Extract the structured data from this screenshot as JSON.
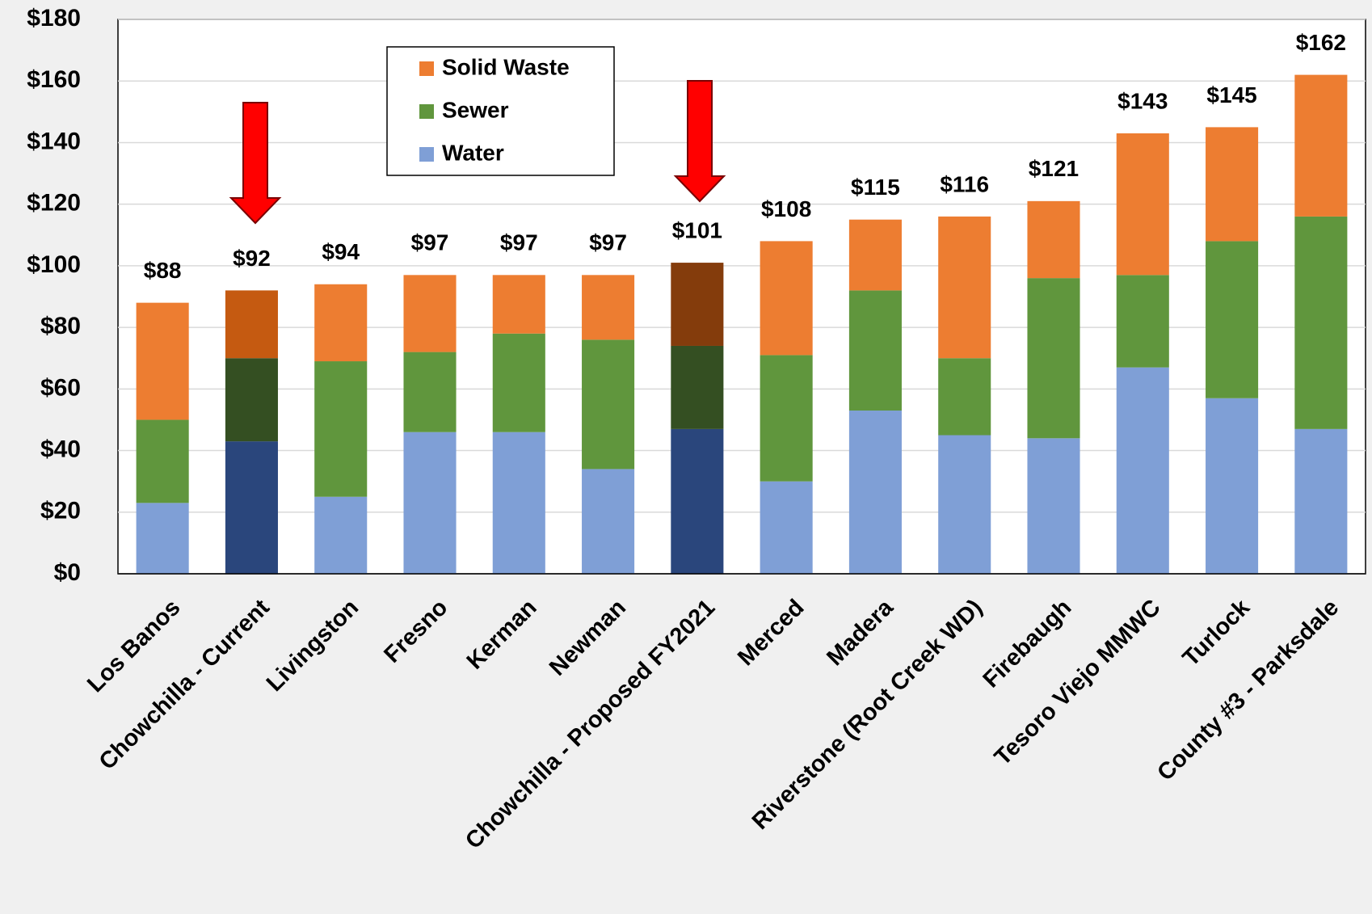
{
  "chart_data": {
    "type": "stacked_bar",
    "categories": [
      "Los Banos",
      "Chowchilla - Current",
      "Livingston",
      "Fresno",
      "Kerman",
      "Newman",
      "Chowchilla - Proposed FY2021",
      "Merced",
      "Madera",
      "Riverstone (Root Creek WD)",
      "Firebaugh",
      "Tesoro Viejo MMWC",
      "Turlock",
      "County #3 - Parksdale"
    ],
    "series": [
      {
        "name": "Water",
        "color": "#7f9fd6",
        "values": [
          23,
          43,
          25,
          46,
          46,
          34,
          47,
          30,
          53,
          45,
          44,
          67,
          57,
          47
        ],
        "colors": [
          "#7f9fd6",
          "#2a467c",
          "#7f9fd6",
          "#7f9fd6",
          "#7f9fd6",
          "#7f9fd6",
          "#2a467c",
          "#7f9fd6",
          "#7f9fd6",
          "#7f9fd6",
          "#7f9fd6",
          "#7f9fd6",
          "#7f9fd6",
          "#7f9fd6"
        ]
      },
      {
        "name": "Sewer",
        "color": "#60963d",
        "values": [
          27,
          27,
          44,
          26,
          32,
          42,
          27,
          41,
          39,
          25,
          52,
          30,
          51,
          69
        ],
        "colors": [
          "#60963d",
          "#344f22",
          "#60963d",
          "#60963d",
          "#60963d",
          "#60963d",
          "#344f22",
          "#60963d",
          "#60963d",
          "#60963d",
          "#60963d",
          "#60963d",
          "#60963d",
          "#60963d"
        ]
      },
      {
        "name": "Solid Waste",
        "color": "#ed7d31",
        "values": [
          38,
          22,
          25,
          25,
          19,
          21,
          27,
          37,
          23,
          46,
          25,
          46,
          37,
          46
        ],
        "colors": [
          "#ed7d31",
          "#c55a11",
          "#ed7d31",
          "#ed7d31",
          "#ed7d31",
          "#ed7d31",
          "#843c0c",
          "#ed7d31",
          "#ed7d31",
          "#ed7d31",
          "#ed7d31",
          "#ed7d31",
          "#ed7d31",
          "#ed7d31"
        ]
      }
    ],
    "total_labels": [
      "$88",
      "$92",
      "$94",
      "$97",
      "$97",
      "$97",
      "$101",
      "$108",
      "$115",
      "$116",
      "$121",
      "$143",
      "$145",
      "$162"
    ],
    "ylim": [
      0,
      180
    ],
    "yticks": [
      {
        "value": 0,
        "label": "$0"
      },
      {
        "value": 20,
        "label": "$20"
      },
      {
        "value": 40,
        "label": "$40"
      },
      {
        "value": 60,
        "label": "$60"
      },
      {
        "value": 80,
        "label": "$80"
      },
      {
        "value": 100,
        "label": "$100"
      },
      {
        "value": 120,
        "label": "$120"
      },
      {
        "value": 140,
        "label": "$140"
      },
      {
        "value": 160,
        "label": "$160"
      },
      {
        "value": 180,
        "label": "$180"
      }
    ],
    "grid": true,
    "legend": "upper left"
  }
}
